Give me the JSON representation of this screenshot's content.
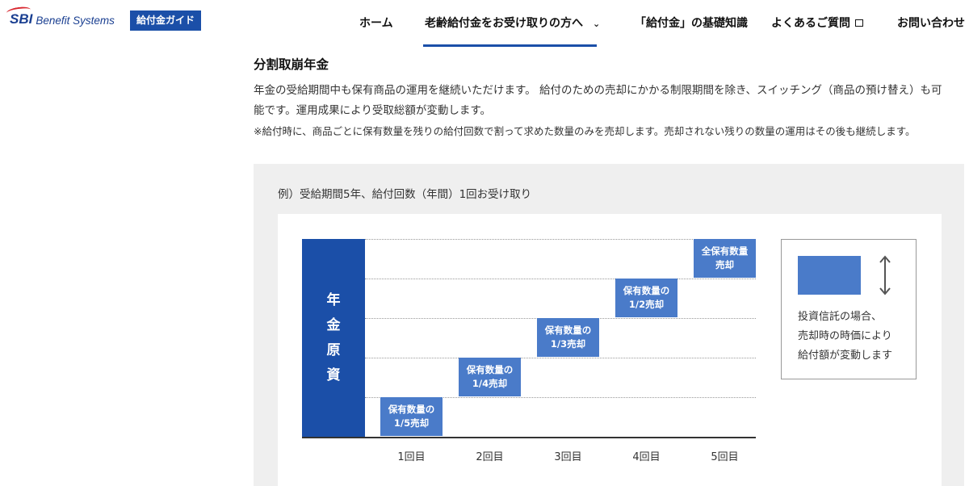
{
  "header": {
    "logo_brand": "SBI",
    "logo_subtitle": "Benefit Systems",
    "guide_badge": "給付金ガイド",
    "nav": [
      {
        "label": "ホーム"
      },
      {
        "label": "老齢給付金をお受け取りの方へ",
        "icon": "chevron-down-icon"
      },
      {
        "label": "「給付金」の基礎知識"
      },
      {
        "label": "よくあるご質問",
        "icon": "external-window-icon"
      },
      {
        "label": "お問い合わせ"
      }
    ],
    "active_nav_index": 1,
    "accent_color": "#1b4fa8"
  },
  "content": {
    "title": "分割取崩年金",
    "paragraph_line1": "年金の受給期間中も保有商品の運用を継続いただけます。 給付のための売却にかかる制限期間を除き、スイッチング（商品の預け替え）も可",
    "paragraph_line2": "能です。運用成果により受取総額が変動します。",
    "note": "※給付時に、商品ごとに保有数量を残りの給付回数で割って求めた数量のみを売却します。売却されない残りの数量の運用はその後も継続します。"
  },
  "example": {
    "label": "例）受給期間5年、給付回数（年間）1回お受け取り"
  },
  "chart_data": {
    "type": "diagram",
    "fund_label": [
      "年",
      "金",
      "原",
      "資"
    ],
    "steps": [
      {
        "line1": "保有数量の",
        "line2": "1/5売却",
        "level": 1
      },
      {
        "line1": "保有数量の",
        "line2": "1/4売却",
        "level": 2
      },
      {
        "line1": "保有数量の",
        "line2": "1/3売却",
        "level": 3
      },
      {
        "line1": "保有数量の",
        "line2": "1/2売却",
        "level": 4
      },
      {
        "line1": "全保有数量",
        "line2": "売却",
        "level": 5
      }
    ],
    "categories": [
      "1回目",
      "2回目",
      "3回目",
      "4回目",
      "5回目"
    ],
    "legend": {
      "line1": "投資信託の場合、",
      "line2": "売却時の時価により",
      "line3": "給付額が変動します"
    },
    "colors": {
      "fund": "#1b4fa8",
      "step": "#4a7bc9"
    }
  }
}
